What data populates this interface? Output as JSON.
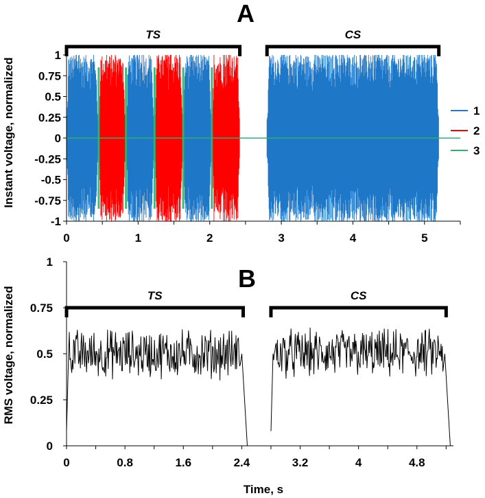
{
  "chart_data": [
    {
      "panel": "A",
      "type": "line",
      "title": "A",
      "xlabel": "",
      "ylabel": "Instant voltage, normalized",
      "xlim": [
        0,
        5.5
      ],
      "ylim": [
        -1,
        1
      ],
      "x_ticks": [
        "0",
        "1",
        "2",
        "3",
        "4",
        "5"
      ],
      "y_ticks": [
        "1",
        "0.75",
        "0.5",
        "0.25",
        "0",
        "-0.25",
        "-0.5",
        "-0.75",
        "-1"
      ],
      "grid": false,
      "legend": "right",
      "series": [
        {
          "name": "1",
          "color": "#1F77C8"
        },
        {
          "name": "2",
          "color": "#FF0000"
        },
        {
          "name": "3",
          "color": "#2EAF6E"
        }
      ],
      "segments": [
        {
          "series": "1",
          "x": [
            0.0,
            0.44
          ],
          "amplitude": 1.0
        },
        {
          "series": "2",
          "x": [
            0.45,
            0.82
          ],
          "amplitude": 1.0
        },
        {
          "series": "1",
          "x": [
            0.83,
            1.22
          ],
          "amplitude": 1.0
        },
        {
          "series": "2",
          "x": [
            1.23,
            1.62
          ],
          "amplitude": 1.0
        },
        {
          "series": "1",
          "x": [
            1.63,
            2.02
          ],
          "amplitude": 1.0
        },
        {
          "series": "2",
          "x": [
            2.03,
            2.42
          ],
          "amplitude": 1.0
        },
        {
          "series": "1",
          "x": [
            2.8,
            5.2
          ],
          "amplitude": 1.0
        }
      ],
      "baseline": {
        "series": "3",
        "x": [
          0.0,
          5.5
        ],
        "y": 0
      },
      "annotations": [
        {
          "text": "TS",
          "x": [
            0.0,
            2.42
          ],
          "y": 1.1
        },
        {
          "text": "CS",
          "x": [
            2.8,
            5.2
          ],
          "y": 1.1
        }
      ]
    },
    {
      "panel": "B",
      "type": "line",
      "title": "B",
      "xlabel": "Time, s",
      "ylabel": "RMS voltage, normalized",
      "xlim": [
        0,
        5.3
      ],
      "ylim": [
        0,
        1
      ],
      "x_ticks": [
        "0",
        "0.8",
        "1.6",
        "2.4",
        "3.2",
        "4",
        "4.8"
      ],
      "y_ticks": [
        "1",
        "0.75",
        "0.5",
        "0.25",
        "0"
      ],
      "grid": false,
      "series": [
        {
          "name": "",
          "color": "#000000",
          "segments": [
            {
              "x": [
                0.0,
                2.42
              ],
              "mean": 0.5,
              "range": [
                0.35,
                0.68
              ]
            },
            {
              "x": [
                2.8,
                5.2
              ],
              "mean": 0.5,
              "range": [
                0.35,
                0.71
              ]
            }
          ]
        }
      ],
      "annotations": [
        {
          "text": "TS",
          "x": [
            0.0,
            2.42
          ],
          "y": 0.75
        },
        {
          "text": "CS",
          "x": [
            2.8,
            5.2
          ],
          "y": 0.75
        }
      ]
    }
  ]
}
